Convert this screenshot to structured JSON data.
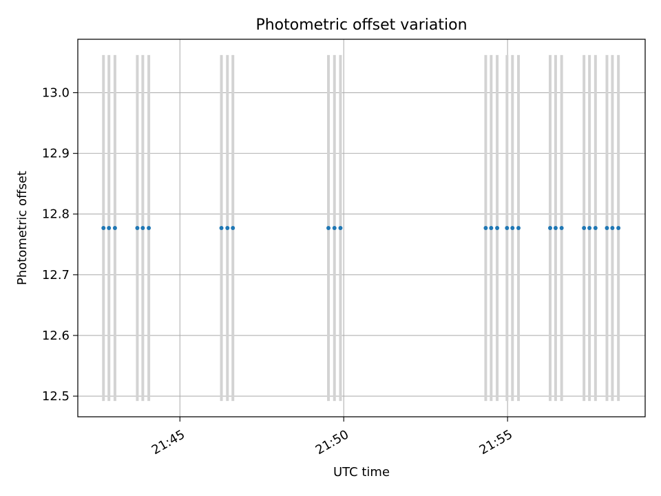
{
  "chart_data": {
    "type": "scatter",
    "title": "Photometric offset variation",
    "xlabel": "UTC time",
    "ylabel": "Photometric offset",
    "xlim": [
      "21:41:53",
      "21:59:12"
    ],
    "ylim": [
      12.466,
      13.088
    ],
    "x_ticks": [
      "21:45",
      "21:50",
      "21:55"
    ],
    "y_ticks": [
      "12.5",
      "12.6",
      "12.7",
      "12.8",
      "12.9",
      "13.0"
    ],
    "grid": true,
    "series": [
      {
        "marker_color": "#1f77b4",
        "errorbar_color": "#d3d3d3",
        "points": [
          {
            "x": "21:42:40",
            "y": 12.777,
            "ylow": 12.492,
            "yhigh": 13.062
          },
          {
            "x": "21:42:50",
            "y": 12.777,
            "ylow": 12.492,
            "yhigh": 13.062
          },
          {
            "x": "21:43:01",
            "y": 12.777,
            "ylow": 12.492,
            "yhigh": 13.062
          },
          {
            "x": "21:43:42",
            "y": 12.777,
            "ylow": 12.492,
            "yhigh": 13.062
          },
          {
            "x": "21:43:52",
            "y": 12.777,
            "ylow": 12.492,
            "yhigh": 13.062
          },
          {
            "x": "21:44:03",
            "y": 12.777,
            "ylow": 12.492,
            "yhigh": 13.062
          },
          {
            "x": "21:46:16",
            "y": 12.777,
            "ylow": 12.492,
            "yhigh": 13.062
          },
          {
            "x": "21:46:27",
            "y": 12.777,
            "ylow": 12.492,
            "yhigh": 13.062
          },
          {
            "x": "21:46:37",
            "y": 12.777,
            "ylow": 12.492,
            "yhigh": 13.062
          },
          {
            "x": "21:49:32",
            "y": 12.777,
            "ylow": 12.492,
            "yhigh": 13.062
          },
          {
            "x": "21:49:43",
            "y": 12.777,
            "ylow": 12.492,
            "yhigh": 13.062
          },
          {
            "x": "21:49:54",
            "y": 12.777,
            "ylow": 12.492,
            "yhigh": 13.062
          },
          {
            "x": "21:54:20",
            "y": 12.777,
            "ylow": 12.492,
            "yhigh": 13.062
          },
          {
            "x": "21:54:30",
            "y": 12.777,
            "ylow": 12.492,
            "yhigh": 13.062
          },
          {
            "x": "21:54:41",
            "y": 12.777,
            "ylow": 12.492,
            "yhigh": 13.062
          },
          {
            "x": "21:54:59",
            "y": 12.777,
            "ylow": 12.492,
            "yhigh": 13.062
          },
          {
            "x": "21:55:09",
            "y": 12.777,
            "ylow": 12.492,
            "yhigh": 13.062
          },
          {
            "x": "21:55:20",
            "y": 12.777,
            "ylow": 12.492,
            "yhigh": 13.062
          },
          {
            "x": "21:56:18",
            "y": 12.777,
            "ylow": 12.492,
            "yhigh": 13.062
          },
          {
            "x": "21:56:28",
            "y": 12.777,
            "ylow": 12.492,
            "yhigh": 13.062
          },
          {
            "x": "21:56:39",
            "y": 12.777,
            "ylow": 12.492,
            "yhigh": 13.062
          },
          {
            "x": "21:57:20",
            "y": 12.777,
            "ylow": 12.492,
            "yhigh": 13.062
          },
          {
            "x": "21:57:30",
            "y": 12.777,
            "ylow": 12.492,
            "yhigh": 13.062
          },
          {
            "x": "21:57:41",
            "y": 12.777,
            "ylow": 12.492,
            "yhigh": 13.062
          },
          {
            "x": "21:58:02",
            "y": 12.777,
            "ylow": 12.492,
            "yhigh": 13.062
          },
          {
            "x": "21:58:12",
            "y": 12.777,
            "ylow": 12.492,
            "yhigh": 13.062
          },
          {
            "x": "21:58:23",
            "y": 12.777,
            "ylow": 12.492,
            "yhigh": 13.062
          }
        ]
      }
    ]
  }
}
